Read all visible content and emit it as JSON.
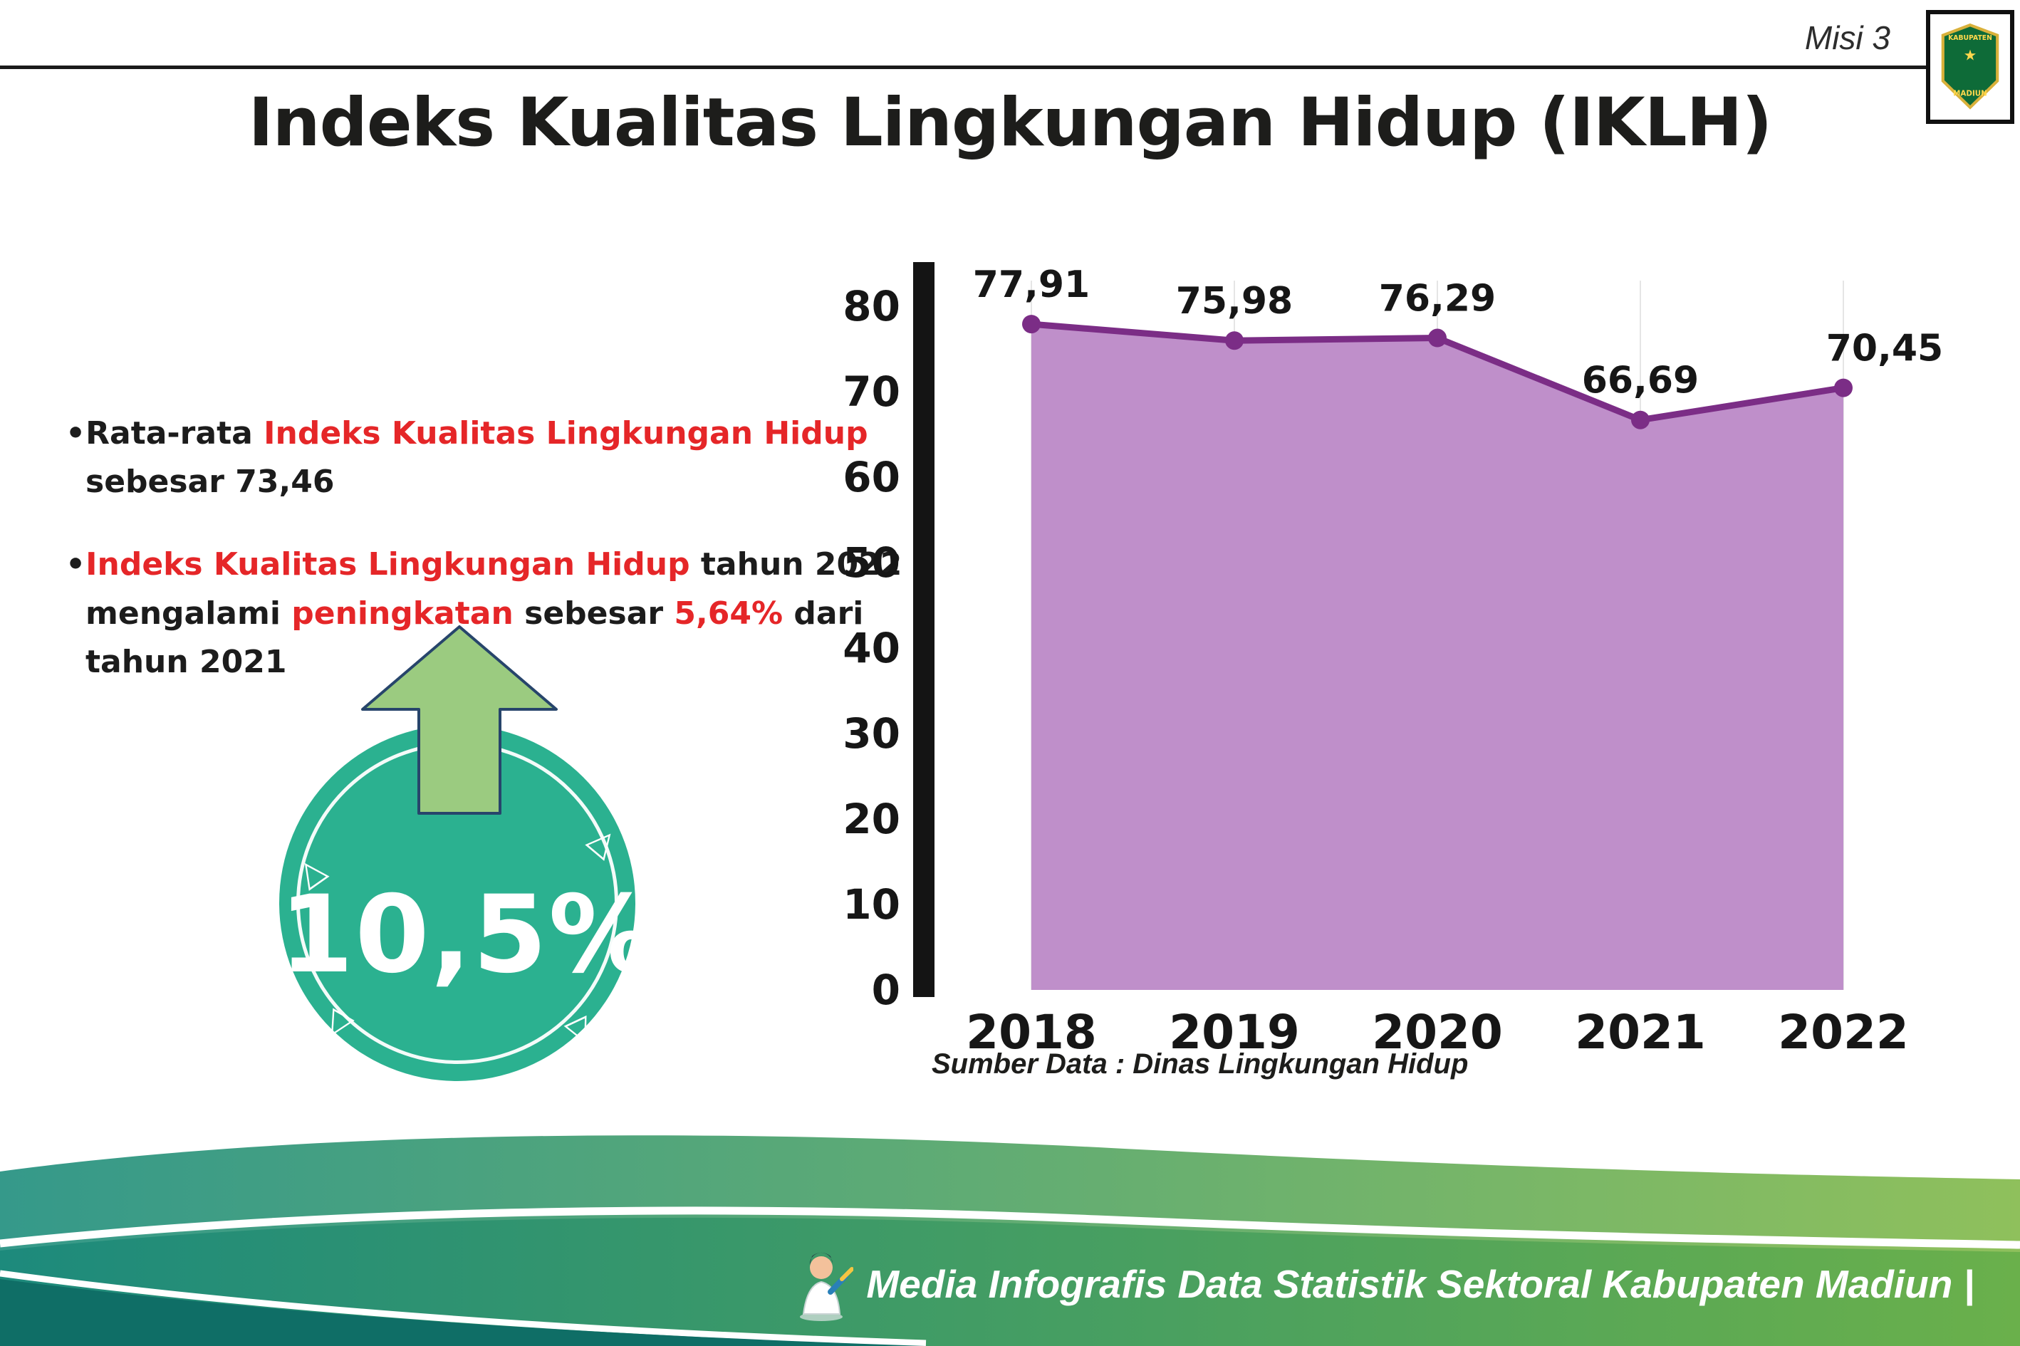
{
  "header": {
    "misi_label": "Misi 3",
    "title": "Indeks Kualitas Lingkungan Hidup (IKLH)",
    "logo": {
      "line1": "KABUPATEN",
      "line2": "MADIUN",
      "star": "★"
    }
  },
  "bullets": {
    "marker": "•",
    "b1": {
      "s1": "Rata-rata ",
      "s2": "Indeks Kualitas Lingkungan Hidup",
      "s3": " sebesar 73,46"
    },
    "b2": {
      "s1": "Indeks Kualitas Lingkungan Hidup",
      "s2": " tahun 2022 mengalami ",
      "s3": "peningkatan",
      "s4": " sebesar ",
      "s5": "5,64%",
      "s6": " dari tahun 2021"
    }
  },
  "badge": {
    "value": "10,5%",
    "tri_glyph": "△"
  },
  "chart_data": {
    "type": "area",
    "title": "Indeks Kualitas Lingkungan Hidup (IKLH)",
    "categories": [
      "2018",
      "2019",
      "2020",
      "2021",
      "2022"
    ],
    "values": [
      77.91,
      75.98,
      76.29,
      66.69,
      70.45
    ],
    "value_labels": [
      "77,91",
      "75,98",
      "76,29",
      "66,69",
      "70,45"
    ],
    "ylim": [
      0,
      80
    ],
    "ytick_step": 10,
    "grid": "vertical-light",
    "legend": "none",
    "line_color": "#7b2d86",
    "fill_color": "#bf8fca",
    "source": "Sumber Data : Dinas Lingkungan Hidup"
  },
  "footer": {
    "text": "Media Infografis Data Statistik Sektoral Kabupaten Madiun |"
  },
  "colors": {
    "accent_red": "#e52628",
    "badge_teal": "#2bb190",
    "arrow_green": "#9bcb80",
    "footer_teal_dark": "#1d8a7c",
    "footer_green_light": "#8fc05c"
  }
}
